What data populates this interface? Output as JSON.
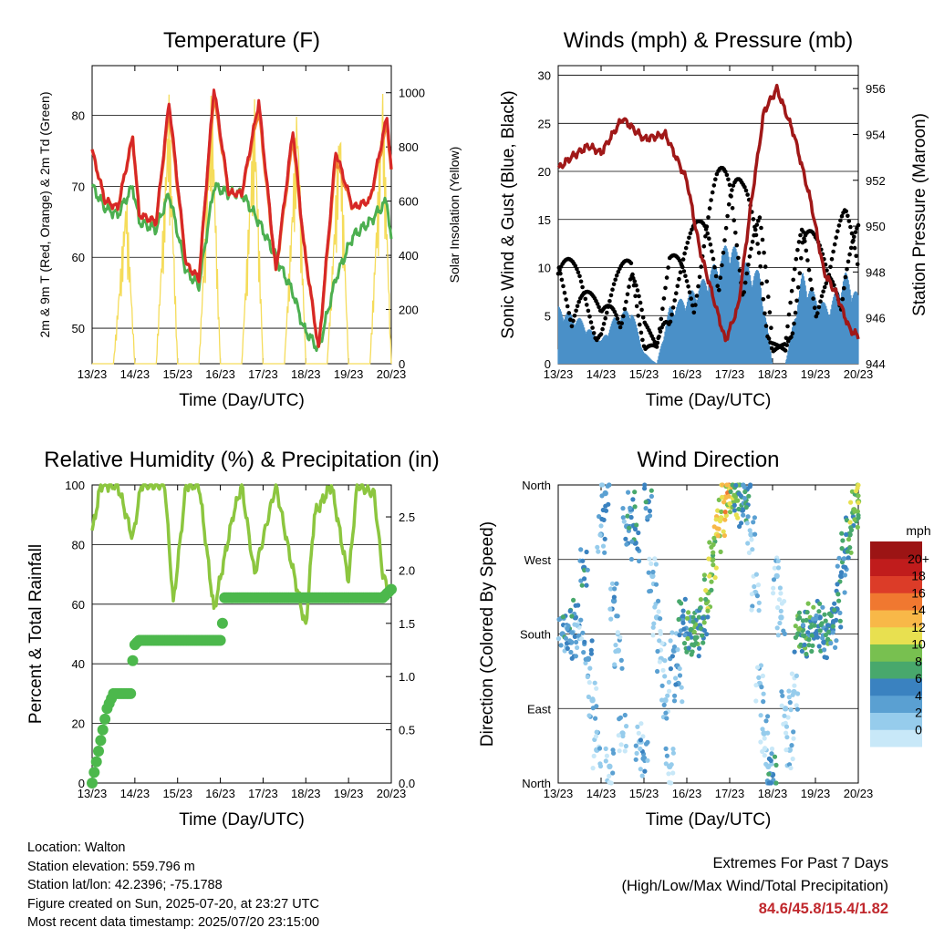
{
  "common": {
    "x_ticks": [
      "13/23",
      "14/23",
      "15/23",
      "16/23",
      "17/23",
      "18/23",
      "19/23",
      "20/23"
    ],
    "xlabel": "Time (Day/UTC)"
  },
  "panels": {
    "temperature": {
      "title": "Temperature (F)",
      "ylabel_left": "2m & 9m T (Red, Orange) & 2m Td (Green)",
      "ylabel_right": "Solar Insolation (Yellow)",
      "y_ticks_left": [
        "50",
        "60",
        "70",
        "80"
      ],
      "y_ticks_right": [
        "0",
        "200",
        "400",
        "600",
        "800",
        "1000"
      ]
    },
    "winds": {
      "title": "Winds (mph) & Pressure (mb)",
      "ylabel_left": "Sonic Wind & Gust (Blue, Black)",
      "ylabel_right": "Station Pressure (Maroon)",
      "y_ticks_left": [
        "0",
        "5",
        "10",
        "15",
        "20",
        "25",
        "30"
      ],
      "y_ticks_right": [
        "944",
        "946",
        "948",
        "950",
        "952",
        "954",
        "956"
      ]
    },
    "humidity": {
      "title": "Relative Humidity (%) & Precipitation (in)",
      "ylabel_left": "Percent & Total Rainfall",
      "y_ticks_left": [
        "0",
        "20",
        "40",
        "60",
        "80",
        "100"
      ],
      "y_ticks_right": [
        "0.0",
        "0.5",
        "1.0",
        "1.5",
        "2.0",
        "2.5"
      ]
    },
    "wind_direction": {
      "title": "Wind Direction",
      "ylabel_left": "Direction (Colored By Speed)",
      "y_ticks_left": [
        "North",
        "East",
        "South",
        "West",
        "North"
      ],
      "colorbar_title": "mph",
      "colorbar_labels": [
        "0",
        "2",
        "4",
        "6",
        "8",
        "10",
        "12",
        "14",
        "16",
        "18",
        "20+"
      ]
    }
  },
  "info": {
    "location": "Location: Walton",
    "elevation": "Station elevation: 559.796 m",
    "latlon": "Station lat/lon: 42.2396; -75.1788",
    "created": "Figure created on Sun, 2025-07-20, at 23:27 UTC",
    "recent": "Most recent data timestamp: 2025/07/20 23:15:00"
  },
  "extremes": {
    "line1": "Extremes For Past 7 Days",
    "line2": "(High/Low/Max Wind/Total Precipitation)",
    "values": "84.6/45.8/15.4/1.82"
  },
  "colors": {
    "temp_2m": "#d62728",
    "temp_9m": "#f08030",
    "dewpoint": "#4caf50",
    "solar": "#f5dc5a",
    "gust": "#000000",
    "wind": "#4a90c8",
    "pressure": "#a01818",
    "rh": "#8cc63f",
    "precip": "#4cb84c",
    "colorbar": [
      "#c8e8f8",
      "#96ccec",
      "#5aa0d2",
      "#3a82c0",
      "#48a86c",
      "#78c050",
      "#e8e050",
      "#f8b848",
      "#f07830",
      "#dc3c28",
      "#c01c1c",
      "#9c1414"
    ]
  },
  "chart_data": [
    {
      "type": "line",
      "title": "Temperature (F)",
      "xlabel": "Time (Day/UTC)",
      "ylabel": "2m & 9m T (Red, Orange) & 2m Td (Green)",
      "ylabel_right": "Solar Insolation (Yellow)",
      "x": [
        0,
        0.5,
        1,
        1.5,
        2,
        2.5,
        3,
        3.5,
        4,
        4.5,
        5,
        5.5,
        6,
        6.5,
        7
      ],
      "xlim": [
        0,
        7
      ],
      "ylim": [
        45,
        87
      ],
      "ylim_right": [
        0,
        1100
      ],
      "series": [
        {
          "name": "2m T",
          "axis": "left",
          "x": [
            0,
            0.3,
            0.6,
            0.95,
            1.1,
            1.5,
            1.8,
            2.2,
            2.5,
            2.85,
            3.2,
            3.5,
            3.9,
            4.3,
            4.7,
            4.95,
            5.3,
            5.7,
            6.1,
            6.5,
            6.9,
            7.0
          ],
          "values": [
            75,
            68,
            67,
            77,
            66,
            65,
            82,
            59,
            57,
            84,
            69,
            69,
            82,
            58,
            78,
            62,
            47,
            75,
            67,
            68,
            80,
            72
          ]
        },
        {
          "name": "9m T",
          "axis": "left",
          "x": [
            0,
            0.3,
            0.6,
            0.95,
            1.1,
            1.5,
            1.8,
            2.2,
            2.5,
            2.85,
            3.2,
            3.5,
            3.9,
            4.3,
            4.7,
            4.95,
            5.3,
            5.7,
            6.1,
            6.5,
            6.9,
            7.0
          ],
          "values": [
            75,
            68,
            67,
            77,
            66,
            65,
            81,
            59,
            57,
            83,
            69,
            69,
            81,
            58,
            77,
            62,
            47,
            74,
            67,
            68,
            79,
            72
          ]
        },
        {
          "name": "2m Td",
          "axis": "left",
          "x": [
            0,
            0.3,
            0.6,
            0.95,
            1.1,
            1.5,
            1.8,
            2.2,
            2.5,
            2.85,
            3.2,
            3.5,
            3.9,
            4.3,
            4.7,
            4.95,
            5.3,
            5.7,
            6.1,
            6.5,
            6.9,
            7.0
          ],
          "values": [
            70,
            67,
            66,
            70,
            65,
            64,
            69,
            58,
            56,
            70,
            69,
            69,
            65,
            60,
            55,
            50,
            47,
            57,
            63,
            65,
            68,
            62
          ]
        },
        {
          "name": "Solar",
          "axis": "right",
          "x": [
            0,
            0.5,
            0.8,
            1.0,
            1.3,
            1.5,
            1.8,
            2.0,
            2.3,
            2.5,
            2.8,
            3.0,
            3.3,
            3.5,
            3.8,
            4.0,
            4.3,
            4.5,
            4.8,
            5.0,
            5.3,
            5.5,
            5.8,
            6.0,
            6.3,
            6.5,
            6.8,
            7.0
          ],
          "values": [
            0,
            0,
            650,
            0,
            0,
            0,
            1000,
            0,
            0,
            0,
            1050,
            0,
            0,
            0,
            1000,
            0,
            0,
            0,
            1000,
            0,
            0,
            0,
            950,
            0,
            0,
            0,
            1050,
            0
          ]
        }
      ]
    },
    {
      "type": "line",
      "title": "Winds (mph) & Pressure (mb)",
      "xlabel": "Time (Day/UTC)",
      "ylabel": "Sonic Wind & Gust (Blue, Black)",
      "ylabel_right": "Station Pressure (Maroon)",
      "xlim": [
        0,
        7
      ],
      "ylim": [
        0,
        31
      ],
      "ylim_right": [
        944,
        957
      ],
      "series": [
        {
          "name": "Sonic Wind",
          "axis": "left",
          "x": [
            0,
            0.5,
            1.0,
            1.3,
            1.7,
            2.0,
            2.3,
            2.6,
            3.0,
            3.3,
            3.7,
            4.0,
            4.3,
            4.7,
            5.0,
            5.3,
            5.7,
            6.0,
            6.3,
            6.7,
            7.0
          ],
          "values": [
            5,
            4,
            2,
            4,
            5,
            1,
            0,
            5,
            6,
            7,
            9,
            11,
            9,
            8,
            0,
            0,
            8,
            6,
            5,
            8,
            6
          ]
        },
        {
          "name": "Gust",
          "axis": "left",
          "x": [
            0,
            0.5,
            1.0,
            1.3,
            1.7,
            2.0,
            2.3,
            2.6,
            3.0,
            3.3,
            3.7,
            4.0,
            4.3,
            4.7,
            5.0,
            5.3,
            5.7,
            6.0,
            6.3,
            6.7,
            7.0
          ],
          "values": [
            11,
            9,
            5,
            8,
            11,
            4,
            2,
            10,
            12,
            14,
            18,
            20,
            17,
            15,
            2,
            2,
            15,
            12,
            10,
            15,
            14
          ]
        },
        {
          "name": "Pressure",
          "axis": "right",
          "x": [
            0,
            0.3,
            0.7,
            1.0,
            1.5,
            2.0,
            2.5,
            3.0,
            3.3,
            3.6,
            3.9,
            4.2,
            4.5,
            4.8,
            5.1,
            5.5,
            5.9,
            6.2,
            6.5,
            6.8,
            7.0
          ],
          "values": [
            952.5,
            953.0,
            953.5,
            953.2,
            954.7,
            953.8,
            954.0,
            952.0,
            949.0,
            947.0,
            945.0,
            946.5,
            951.0,
            955.0,
            956.0,
            954.0,
            951.0,
            948.0,
            947.0,
            945.5,
            945.2
          ]
        }
      ]
    },
    {
      "type": "line",
      "title": "Relative Humidity (%) & Precipitation (in)",
      "xlabel": "Time (Day/UTC)",
      "ylabel": "Percent & Total Rainfall",
      "xlim": [
        0,
        7
      ],
      "ylim": [
        0,
        100
      ],
      "ylim_right": [
        0,
        2.8
      ],
      "series": [
        {
          "name": "RH",
          "axis": "left",
          "x": [
            0,
            0.2,
            0.6,
            0.95,
            1.15,
            1.3,
            1.7,
            1.9,
            2.2,
            2.5,
            2.85,
            3.3,
            3.5,
            3.8,
            4.3,
            4.6,
            5.0,
            5.2,
            5.6,
            6.0,
            6.2,
            6.6,
            6.8,
            7.0
          ],
          "values": [
            84,
            100,
            100,
            82,
            100,
            100,
            100,
            60,
            100,
            100,
            58,
            90,
            100,
            70,
            100,
            78,
            52,
            90,
            100,
            68,
            100,
            97,
            70,
            62
          ]
        },
        {
          "name": "Precip",
          "axis": "right",
          "x": [
            0,
            0.1,
            0.2,
            0.35,
            0.5,
            0.6,
            0.9,
            0.95,
            1.0,
            1.1,
            1.2,
            2.0,
            3.0,
            3.05,
            3.1,
            4.0,
            5.0,
            6.0,
            6.8,
            7.0
          ],
          "values": [
            0.0,
            0.2,
            0.4,
            0.7,
            0.84,
            0.84,
            0.84,
            1.15,
            1.3,
            1.34,
            1.34,
            1.34,
            1.34,
            1.5,
            1.74,
            1.74,
            1.74,
            1.74,
            1.74,
            1.82
          ]
        }
      ]
    },
    {
      "type": "scatter",
      "title": "Wind Direction",
      "xlabel": "Time (Day/UTC)",
      "ylabel": "Direction (Colored By Speed)",
      "xlim": [
        0,
        7
      ],
      "ylim": [
        0,
        360
      ],
      "points": [
        {
          "x": 0.1,
          "y": 180,
          "s": 3
        },
        {
          "x": 0.2,
          "y": 190,
          "s": 6
        },
        {
          "x": 0.3,
          "y": 170,
          "s": 4
        },
        {
          "x": 0.4,
          "y": 200,
          "s": 5
        },
        {
          "x": 0.5,
          "y": 175,
          "s": 2
        },
        {
          "x": 0.6,
          "y": 260,
          "s": 5
        },
        {
          "x": 0.7,
          "y": 150,
          "s": 4
        },
        {
          "x": 0.8,
          "y": 100,
          "s": 2
        },
        {
          "x": 0.9,
          "y": 40,
          "s": 1
        },
        {
          "x": 1.0,
          "y": 300,
          "s": 3
        },
        {
          "x": 1.1,
          "y": 350,
          "s": 4
        },
        {
          "x": 1.2,
          "y": 20,
          "s": 1
        },
        {
          "x": 1.3,
          "y": 220,
          "s": 3
        },
        {
          "x": 1.4,
          "y": 160,
          "s": 2
        },
        {
          "x": 1.5,
          "y": 60,
          "s": 1
        },
        {
          "x": 1.6,
          "y": 310,
          "s": 4
        },
        {
          "x": 1.7,
          "y": 330,
          "s": 6
        },
        {
          "x": 1.8,
          "y": 290,
          "s": 5
        },
        {
          "x": 1.9,
          "y": 50,
          "s": 2
        },
        {
          "x": 2.0,
          "y": 30,
          "s": 3
        },
        {
          "x": 2.1,
          "y": 340,
          "s": 5
        },
        {
          "x": 2.2,
          "y": 250,
          "s": 2
        },
        {
          "x": 2.3,
          "y": 200,
          "s": 1
        },
        {
          "x": 2.4,
          "y": 150,
          "s": 1
        },
        {
          "x": 2.5,
          "y": 100,
          "s": 2
        },
        {
          "x": 2.6,
          "y": 20,
          "s": 1
        },
        {
          "x": 2.7,
          "y": 160,
          "s": 3
        },
        {
          "x": 2.8,
          "y": 120,
          "s": 3
        },
        {
          "x": 2.9,
          "y": 200,
          "s": 5
        },
        {
          "x": 3.0,
          "y": 180,
          "s": 6
        },
        {
          "x": 3.1,
          "y": 185,
          "s": 8
        },
        {
          "x": 3.2,
          "y": 175,
          "s": 7
        },
        {
          "x": 3.3,
          "y": 190,
          "s": 6
        },
        {
          "x": 3.4,
          "y": 200,
          "s": 8
        },
        {
          "x": 3.5,
          "y": 230,
          "s": 9
        },
        {
          "x": 3.6,
          "y": 270,
          "s": 10
        },
        {
          "x": 3.7,
          "y": 300,
          "s": 11
        },
        {
          "x": 3.8,
          "y": 320,
          "s": 12
        },
        {
          "x": 3.9,
          "y": 345,
          "s": 13
        },
        {
          "x": 4.0,
          "y": 355,
          "s": 12
        },
        {
          "x": 4.1,
          "y": 340,
          "s": 9
        },
        {
          "x": 4.2,
          "y": 350,
          "s": 7
        },
        {
          "x": 4.3,
          "y": 330,
          "s": 6
        },
        {
          "x": 4.4,
          "y": 355,
          "s": 5
        },
        {
          "x": 4.5,
          "y": 300,
          "s": 2
        },
        {
          "x": 4.6,
          "y": 230,
          "s": 1
        },
        {
          "x": 4.7,
          "y": 120,
          "s": 1
        },
        {
          "x": 4.8,
          "y": 60,
          "s": 1
        },
        {
          "x": 4.9,
          "y": 20,
          "s": 2
        },
        {
          "x": 5.0,
          "y": 10,
          "s": 6
        },
        {
          "x": 5.1,
          "y": 250,
          "s": 1
        },
        {
          "x": 5.2,
          "y": 200,
          "s": 1
        },
        {
          "x": 5.3,
          "y": 90,
          "s": 1
        },
        {
          "x": 5.4,
          "y": 40,
          "s": 1
        },
        {
          "x": 5.5,
          "y": 110,
          "s": 1
        },
        {
          "x": 5.6,
          "y": 180,
          "s": 7
        },
        {
          "x": 5.7,
          "y": 185,
          "s": 8
        },
        {
          "x": 5.8,
          "y": 175,
          "s": 6
        },
        {
          "x": 5.9,
          "y": 195,
          "s": 7
        },
        {
          "x": 6.0,
          "y": 180,
          "s": 6
        },
        {
          "x": 6.1,
          "y": 200,
          "s": 5
        },
        {
          "x": 6.2,
          "y": 170,
          "s": 6
        },
        {
          "x": 6.3,
          "y": 190,
          "s": 7
        },
        {
          "x": 6.4,
          "y": 185,
          "s": 5
        },
        {
          "x": 6.5,
          "y": 210,
          "s": 6
        },
        {
          "x": 6.6,
          "y": 250,
          "s": 5
        },
        {
          "x": 6.7,
          "y": 280,
          "s": 6
        },
        {
          "x": 6.8,
          "y": 300,
          "s": 7
        },
        {
          "x": 6.9,
          "y": 330,
          "s": 9
        },
        {
          "x": 7.0,
          "y": 340,
          "s": 10
        }
      ]
    }
  ]
}
